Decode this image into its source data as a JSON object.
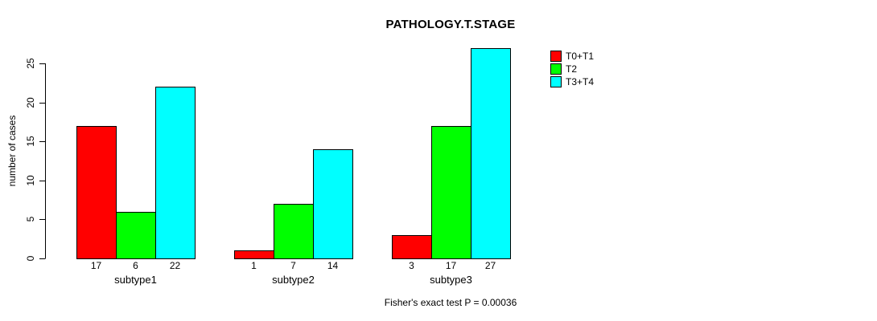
{
  "chart_data": {
    "type": "bar",
    "title": "PATHOLOGY.T.STAGE",
    "ylabel": "number of cases",
    "xlabel": "",
    "categories": [
      "subtype1",
      "subtype2",
      "subtype3"
    ],
    "series": [
      {
        "name": "T0+T1",
        "color": "#FF0000",
        "values": [
          17,
          1,
          3
        ]
      },
      {
        "name": "T2",
        "color": "#00FF00",
        "values": [
          6,
          7,
          17
        ]
      },
      {
        "name": "T3+T4",
        "color": "#00FFFF",
        "values": [
          22,
          14,
          27
        ]
      }
    ],
    "yticks": [
      0,
      5,
      10,
      15,
      20,
      25
    ],
    "ylim": [
      0,
      27
    ],
    "grid": false,
    "bar_value_labels": true,
    "legend_position": "top-right",
    "annotation": "Fisher's exact test P = 0.00036"
  },
  "colors": {
    "background": "#FFFFFF",
    "axis": "#000000",
    "bar_outline": "#000000",
    "text": "#000000"
  }
}
